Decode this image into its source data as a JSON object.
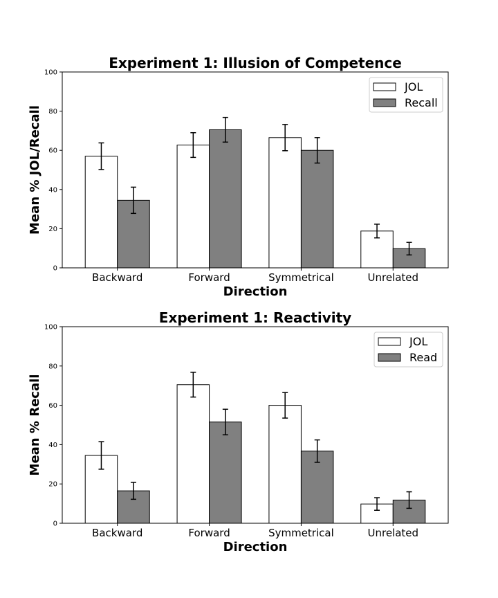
{
  "colors": {
    "jol": "#ffffff",
    "comparison": "#808080",
    "edge": "#000000"
  },
  "chart_data": [
    {
      "type": "bar",
      "title": "Experiment 1: Illusion of Competence",
      "xlabel": "Direction",
      "ylabel": "Mean % JOL/Recall",
      "ylim": [
        0,
        100
      ],
      "yticks": [
        0,
        20,
        40,
        60,
        80,
        100
      ],
      "categories": [
        "Backward",
        "Forward",
        "Symmetrical",
        "Unrelated"
      ],
      "legend": "top-right",
      "series": [
        {
          "name": "JOL",
          "color": "#ffffff",
          "values": [
            57,
            62.7,
            66.5,
            18.8
          ],
          "errors": [
            6.8,
            6.3,
            6.7,
            3.5
          ]
        },
        {
          "name": "Recall",
          "color": "#808080",
          "values": [
            34.5,
            70.5,
            60,
            9.8
          ],
          "errors": [
            6.7,
            6.3,
            6.5,
            3.2
          ]
        }
      ]
    },
    {
      "type": "bar",
      "title": "Experiment 1: Reactivity",
      "xlabel": "Direction",
      "ylabel": "Mean % Recall",
      "ylim": [
        0,
        100
      ],
      "yticks": [
        0,
        20,
        40,
        60,
        80,
        100
      ],
      "categories": [
        "Backward",
        "Forward",
        "Symmetrical",
        "Unrelated"
      ],
      "legend": "top-right",
      "series": [
        {
          "name": "JOL",
          "color": "#ffffff",
          "values": [
            34.5,
            70.5,
            60,
            9.8
          ],
          "errors": [
            7,
            6.3,
            6.5,
            3.2
          ]
        },
        {
          "name": "Read",
          "color": "#808080",
          "values": [
            16.5,
            51.5,
            36.7,
            11.8
          ],
          "errors": [
            4.3,
            6.5,
            5.7,
            4.2
          ]
        }
      ]
    }
  ]
}
